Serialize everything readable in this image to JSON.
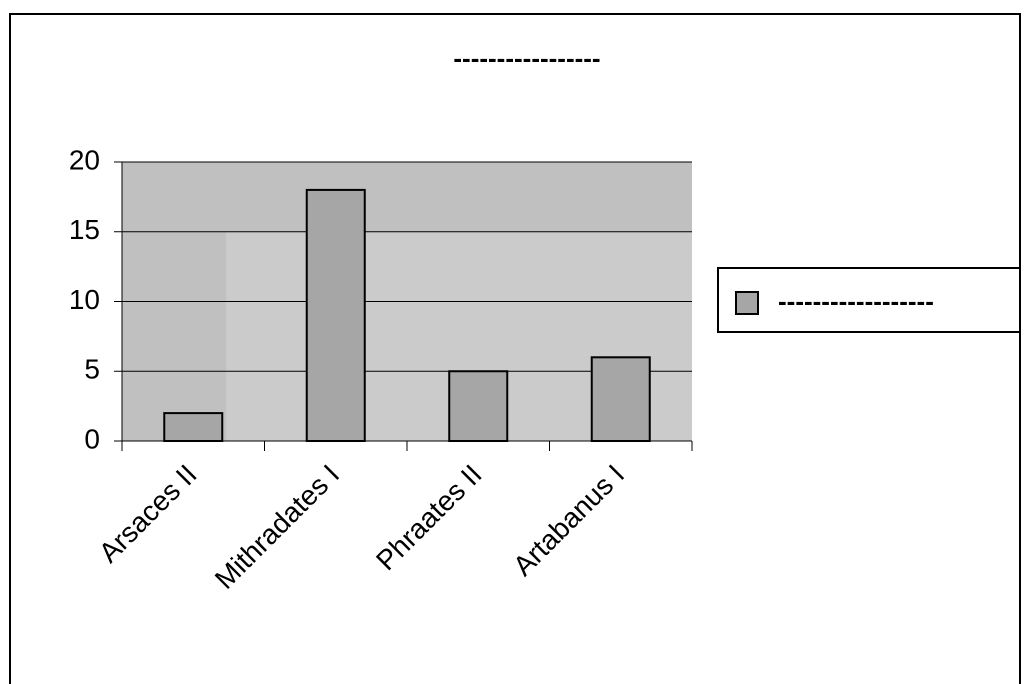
{
  "chart_data": {
    "type": "bar",
    "title": "-----------------",
    "categories": [
      "Arsaces II",
      "Mithradates I",
      "Phraates II",
      "Artabanus I"
    ],
    "series": [
      {
        "name": "------------------",
        "color": "#a6a6a6",
        "values": [
          2,
          18,
          5,
          6
        ]
      }
    ],
    "ylim": [
      0,
      20
    ],
    "yticks": [
      0,
      5,
      10,
      15,
      20
    ],
    "grid": true,
    "legend": "right"
  }
}
